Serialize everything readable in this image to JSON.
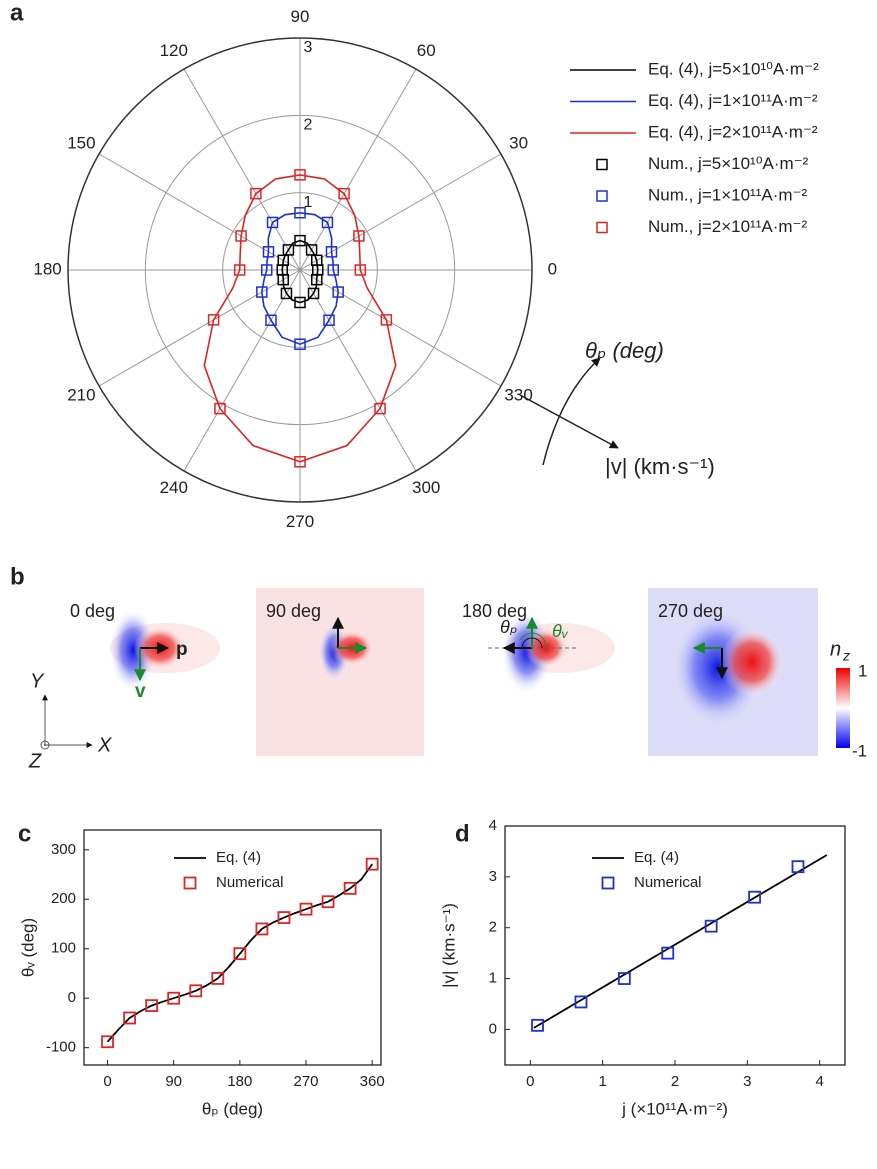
{
  "chart_data": [
    {
      "type": "polar",
      "panel_label": "a",
      "rlim": [
        0,
        3
      ],
      "rticks": [
        1,
        2,
        3
      ],
      "angle_ticks": [
        0,
        30,
        60,
        90,
        120,
        150,
        180,
        210,
        240,
        270,
        300,
        330
      ],
      "grid": true,
      "series": [
        {
          "name": "Eq. (4), j=5×10¹⁰A·m⁻²",
          "color": "#000000",
          "mode": "line",
          "theta": [
            0,
            15,
            30,
            45,
            60,
            75,
            90,
            105,
            120,
            135,
            150,
            165,
            180,
            195,
            210,
            225,
            240,
            255,
            270,
            285,
            300,
            315,
            330,
            345,
            360
          ],
          "values": [
            0.23,
            0.23,
            0.25,
            0.27,
            0.3,
            0.36,
            0.38,
            0.36,
            0.3,
            0.27,
            0.25,
            0.23,
            0.23,
            0.23,
            0.25,
            0.3,
            0.35,
            0.4,
            0.42,
            0.4,
            0.35,
            0.3,
            0.25,
            0.23,
            0.23
          ]
        },
        {
          "name": "Eq. (4), j=1×10¹¹A·m⁻²",
          "color": "#1f2fd6",
          "mode": "line",
          "theta": [
            0,
            15,
            30,
            45,
            60,
            75,
            90,
            105,
            120,
            135,
            150,
            165,
            180,
            195,
            210,
            225,
            240,
            255,
            270,
            285,
            300,
            315,
            330,
            345,
            360
          ],
          "values": [
            0.43,
            0.44,
            0.47,
            0.58,
            0.71,
            0.74,
            0.74,
            0.74,
            0.71,
            0.58,
            0.47,
            0.44,
            0.43,
            0.48,
            0.57,
            0.66,
            0.75,
            0.9,
            0.96,
            0.9,
            0.75,
            0.66,
            0.57,
            0.48,
            0.43
          ]
        },
        {
          "name": "Eq. (4), j=2×10¹¹A·m⁻²",
          "color": "#e02424",
          "mode": "line",
          "theta": [
            0,
            15,
            30,
            45,
            60,
            75,
            90,
            105,
            120,
            135,
            150,
            165,
            180,
            195,
            210,
            225,
            240,
            255,
            270,
            285,
            300,
            315,
            330,
            345,
            360
          ],
          "values": [
            0.78,
            0.8,
            0.88,
            1.0,
            1.14,
            1.22,
            1.23,
            1.22,
            1.14,
            1.0,
            0.88,
            0.8,
            0.78,
            0.9,
            1.29,
            1.75,
            2.07,
            2.35,
            2.48,
            2.35,
            2.07,
            1.75,
            1.29,
            0.9,
            0.78
          ]
        },
        {
          "name": "Num., j=5×10¹⁰A·m⁻²",
          "color": "#000000",
          "mode": "marker",
          "theta": [
            0,
            30,
            60,
            90,
            120,
            150,
            180,
            210,
            240,
            270,
            300,
            330
          ],
          "values": [
            0.23,
            0.25,
            0.3,
            0.38,
            0.3,
            0.25,
            0.23,
            0.25,
            0.35,
            0.42,
            0.35,
            0.25
          ]
        },
        {
          "name": "Num., j=1×10¹¹A·m⁻²",
          "color": "#1f2fd6",
          "mode": "marker",
          "theta": [
            0,
            30,
            60,
            90,
            120,
            150,
            180,
            210,
            240,
            270,
            300,
            330
          ],
          "values": [
            0.43,
            0.47,
            0.71,
            0.74,
            0.71,
            0.47,
            0.43,
            0.57,
            0.75,
            0.96,
            0.75,
            0.57
          ]
        },
        {
          "name": "Num., j=2×10¹¹A·m⁻²",
          "color": "#e02424",
          "mode": "marker",
          "theta": [
            0,
            30,
            60,
            90,
            120,
            150,
            180,
            210,
            240,
            270,
            300,
            330
          ],
          "values": [
            0.78,
            0.88,
            1.14,
            1.23,
            1.14,
            0.88,
            0.78,
            1.29,
            2.07,
            2.48,
            2.07,
            1.29
          ]
        }
      ],
      "annotations": [
        "θₚ (deg)",
        "|v| (km·s⁻¹)"
      ]
    },
    {
      "type": "line",
      "panel_label": "c",
      "x_label": "θₚ (deg)",
      "y_label": "θᵥ (deg)",
      "xlim": [
        -32,
        372
      ],
      "ylim": [
        -135,
        340
      ],
      "xticks": [
        0,
        90,
        180,
        270,
        360
      ],
      "yticks": [
        -100,
        0,
        100,
        200,
        300
      ],
      "series": [
        {
          "name": "Eq. (4)",
          "color": "#000000",
          "mode": "line",
          "x": [
            0,
            15,
            30,
            45,
            60,
            75,
            90,
            105,
            120,
            135,
            150,
            165,
            180,
            195,
            210,
            225,
            240,
            255,
            270,
            285,
            300,
            315,
            330,
            345,
            360
          ],
          "values": [
            -88,
            -63,
            -40,
            -26,
            -15,
            -7,
            0,
            7,
            15,
            26,
            40,
            63,
            90,
            117,
            140,
            153,
            163,
            172,
            180,
            188,
            195,
            208,
            222,
            240,
            271
          ]
        },
        {
          "name": "Numerical",
          "color": "#e02424",
          "mode": "marker",
          "x": [
            0,
            30,
            60,
            90,
            120,
            150,
            180,
            210,
            240,
            270,
            300,
            330,
            360
          ],
          "values": [
            -88,
            -40,
            -15,
            0,
            15,
            40,
            90,
            140,
            163,
            180,
            195,
            222,
            271
          ]
        }
      ]
    },
    {
      "type": "line",
      "panel_label": "d",
      "x_label": "j (×10¹¹A·m⁻²)",
      "y_label": "|v| (km·s⁻¹)",
      "xlim": [
        -0.35,
        4.35
      ],
      "ylim": [
        -0.7,
        4
      ],
      "xticks": [
        0,
        1,
        2,
        3,
        4
      ],
      "yticks": [
        0,
        1,
        2,
        3,
        4
      ],
      "series": [
        {
          "name": "Eq. (4)",
          "color": "#000000",
          "mode": "line",
          "x": [
            0.05,
            4.1
          ],
          "values": [
            0.03,
            3.43
          ]
        },
        {
          "name": "Numerical",
          "color": "#1f2fd6",
          "mode": "marker",
          "x": [
            0.1,
            0.7,
            1.3,
            1.9,
            2.5,
            3.1,
            3.7
          ],
          "values": [
            0.08,
            0.54,
            1.0,
            1.5,
            2.03,
            2.6,
            3.2
          ]
        }
      ]
    }
  ],
  "panel_b": {
    "panel_label": "b",
    "frames": [
      "0 deg",
      "90 deg",
      "180 deg",
      "270 deg"
    ],
    "vector_labels": [
      "p",
      "v"
    ],
    "angle_labels": [
      "θₚ",
      "θᵥ"
    ],
    "axes_labels": [
      "Y",
      "X",
      "Z"
    ],
    "colorbar_title": "n",
    "colorbar_subscript": "z",
    "colorbar_labels": [
      "1",
      "-1"
    ]
  }
}
